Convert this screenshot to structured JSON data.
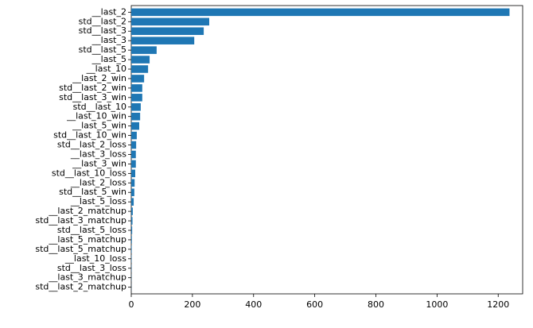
{
  "chart_data": {
    "type": "barh",
    "color": "#1f77b4",
    "categories": [
      "__last_2",
      "std__last_2",
      "std__last_3",
      "__last_3",
      "std__last_5",
      "__last_5",
      "__last_10",
      "__last_2_win",
      "std__last_2_win",
      "std__last_3_win",
      "std__last_10",
      "__last_10_win",
      "__last_5_win",
      "std__last_10_win",
      "std__last_2_loss",
      "__last_3_loss",
      "__last_3_win",
      "std__last_10_loss",
      "__last_2_loss",
      "std__last_5_win",
      "__last_5_loss",
      "__last_2_matchup",
      "std__last_3_matchup",
      "std__last_5_loss",
      "__last_5_matchup",
      "std__last_5_matchup",
      "__last_10_loss",
      "std__last_3_loss",
      "__last_3_matchup",
      "std__last_2_matchup"
    ],
    "values": [
      1237,
      255,
      237,
      206,
      83,
      60,
      55,
      42,
      36,
      36,
      31,
      29,
      26,
      18,
      16,
      15,
      15,
      13,
      11,
      10,
      8,
      5,
      4,
      3,
      2,
      1.5,
      1,
      0.8,
      0.5,
      0.3
    ],
    "xlim": [
      0,
      1280
    ],
    "xticks": [
      0,
      200,
      400,
      600,
      800,
      1000,
      1200
    ]
  }
}
